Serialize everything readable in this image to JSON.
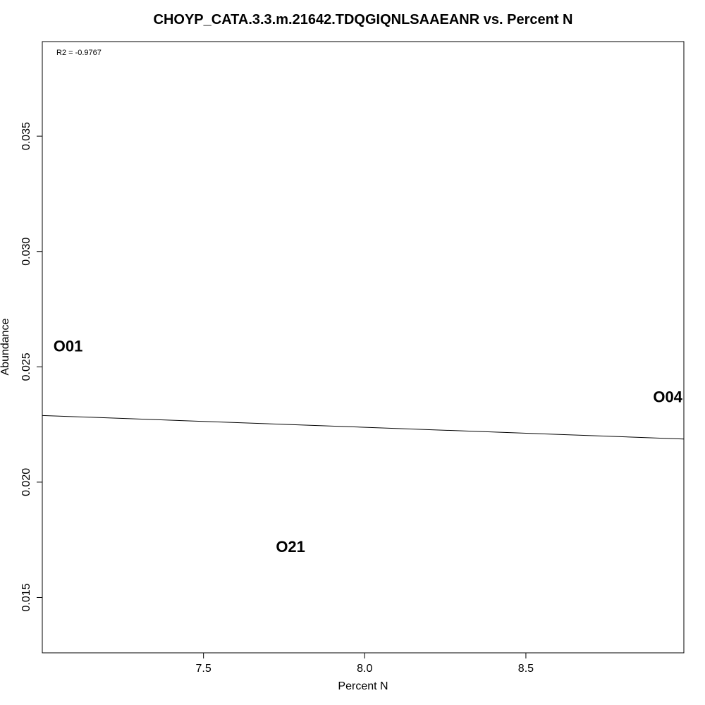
{
  "chart_data": {
    "type": "scatter",
    "title": "CHOYP_CATA.3.3.m.21642.TDQGIQNLSAAEANR vs. Percent N",
    "xlabel": "Percent N",
    "ylabel": "Abundance",
    "xlim": [
      7.0,
      8.99
    ],
    "ylim": [
      0.0126,
      0.0391
    ],
    "xticks": [
      7.5,
      8.0,
      8.5
    ],
    "xtick_labels": [
      "7.5",
      "8.0",
      "8.5"
    ],
    "yticks": [
      0.015,
      0.02,
      0.025,
      0.03,
      0.035
    ],
    "ytick_labels": [
      "0.015",
      "0.020",
      "0.025",
      "0.030",
      "0.035"
    ],
    "annotation": "R2 = -0.9767",
    "grid": false,
    "points": [
      {
        "label": "O01",
        "x": 7.08,
        "y": 0.0259
      },
      {
        "label": "O21",
        "x": 7.77,
        "y": 0.0172
      },
      {
        "label": "O04",
        "x": 8.94,
        "y": 0.0237
      }
    ],
    "fit_line": {
      "x": [
        7.0,
        8.99
      ],
      "y": [
        0.02289,
        0.02187
      ]
    }
  }
}
